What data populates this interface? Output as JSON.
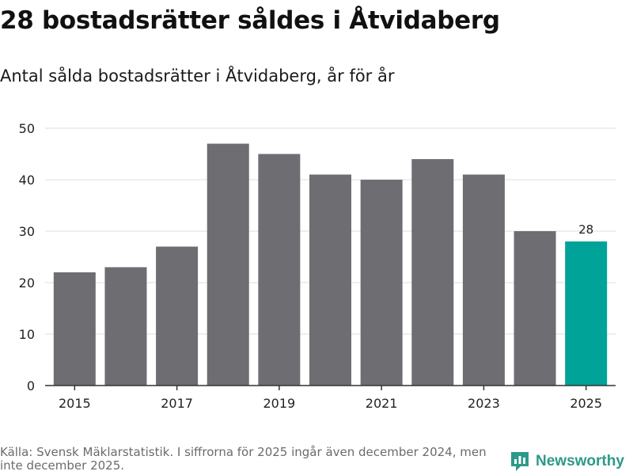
{
  "title": "28 bostadsrätter såldes i Åtvidaberg",
  "subtitle": "Antal sålda bostadsrätter i Åtvidaberg, år för år",
  "footer": "Källa: Svensk Mäklarstatistik. I siffrorna för 2025 ingår även december 2024, men inte december 2025.",
  "brand": "Newsworthy",
  "colors": {
    "bar": "#6e6d72",
    "highlight": "#00a398",
    "grid": "#dcdcdc",
    "axis": "#333333",
    "brand": "#2c9a88"
  },
  "chart_data": {
    "type": "bar",
    "categories": [
      "2015",
      "2016",
      "2017",
      "2018",
      "2019",
      "2020",
      "2021",
      "2022",
      "2023",
      "2024",
      "2025"
    ],
    "values": [
      22,
      23,
      27,
      47,
      45,
      41,
      40,
      44,
      41,
      30,
      28
    ],
    "highlight": "2025",
    "data_labels": [
      {
        "category": "2025",
        "text": "28"
      }
    ],
    "xticks": [
      "2015",
      "2017",
      "2019",
      "2021",
      "2023",
      "2025"
    ],
    "yticks": [
      "0",
      "10",
      "20",
      "30",
      "40",
      "50"
    ],
    "ylim": [
      0,
      50
    ],
    "grid": true,
    "xlabel": "",
    "ylabel": ""
  }
}
